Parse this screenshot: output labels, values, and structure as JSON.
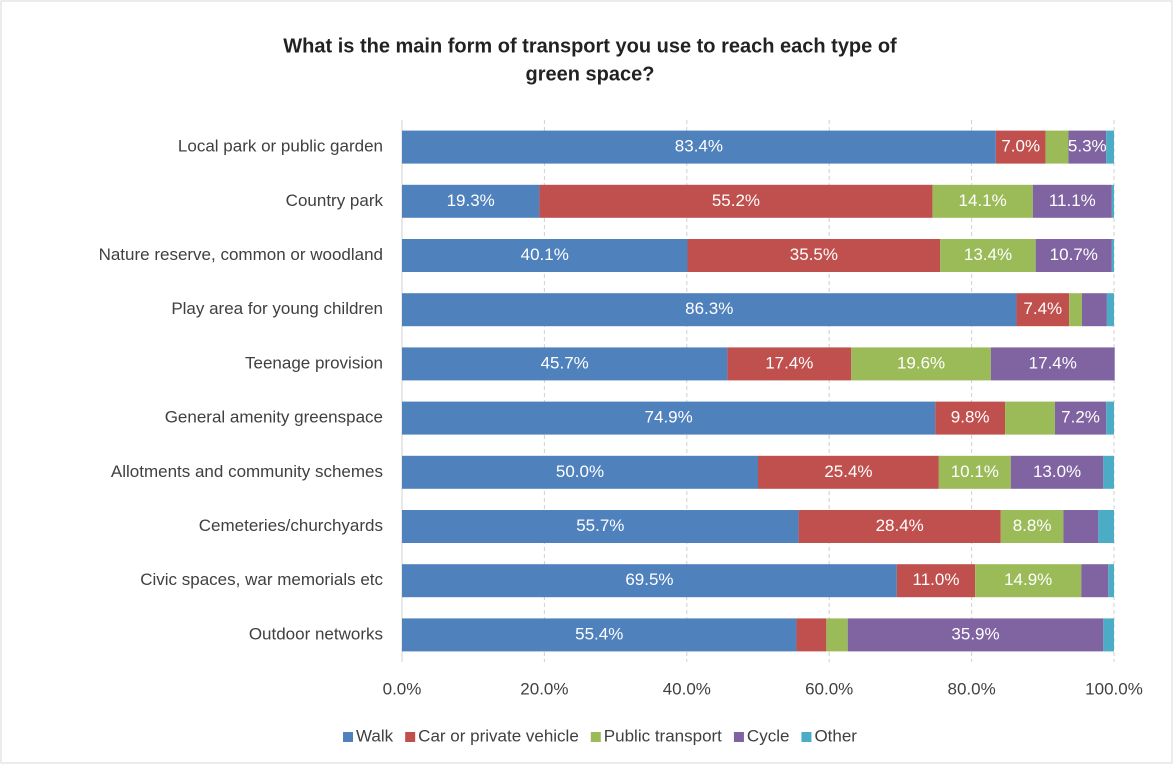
{
  "chart_data": {
    "type": "stacked_barh",
    "title": "What is the main form of transport you use to reach each type of green space?",
    "categories": [
      "Local park or public garden",
      "Country park",
      "Nature reserve, common or woodland",
      "Play area for young children",
      "Teenage provision",
      "General amenity greenspace",
      "Allotments and community schemes",
      "Cemeteries/churchyards",
      "Civic spaces, war memorials etc",
      "Outdoor networks"
    ],
    "series": [
      {
        "name": "Walk",
        "color": "#4f81bd",
        "values": [
          83.4,
          19.3,
          40.1,
          86.3,
          45.7,
          74.9,
          50.0,
          55.7,
          69.5,
          55.4
        ],
        "value_labels": [
          "83.4%",
          "19.3%",
          "40.1%",
          "86.3%",
          "45.7%",
          "74.9%",
          "50.0%",
          "55.7%",
          "69.5%",
          "55.4%"
        ]
      },
      {
        "name": "Car or private vehicle",
        "color": "#c0504d",
        "values": [
          7.0,
          55.2,
          35.5,
          7.4,
          17.4,
          9.8,
          25.4,
          28.4,
          11.0,
          4.2
        ],
        "value_labels": [
          "7.0%",
          "55.2%",
          "35.5%",
          "7.4%",
          "17.4%",
          "9.8%",
          "25.4%",
          "28.4%",
          "11.0%",
          null
        ]
      },
      {
        "name": "Public transport",
        "color": "#9bbb59",
        "values": [
          3.2,
          14.1,
          13.4,
          1.8,
          19.6,
          7.0,
          10.1,
          8.8,
          14.9,
          3.0
        ],
        "value_labels": [
          null,
          "14.1%",
          "13.4%",
          null,
          "19.6%",
          null,
          "10.1%",
          "8.8%",
          "14.9%",
          null
        ]
      },
      {
        "name": "Cycle",
        "color": "#8064a2",
        "values": [
          5.3,
          11.1,
          10.7,
          3.5,
          17.4,
          7.2,
          13.0,
          4.9,
          3.8,
          35.9
        ],
        "value_labels": [
          "5.3%",
          "11.1%",
          "10.7%",
          null,
          "17.4%",
          "7.2%",
          "13.0%",
          null,
          null,
          "35.9%"
        ]
      },
      {
        "name": "Other",
        "color": "#4bacc6",
        "values": [
          1.1,
          0.3,
          0.3,
          1.0,
          0.0,
          1.1,
          1.5,
          2.2,
          0.8,
          1.5
        ],
        "value_labels": [
          null,
          null,
          null,
          null,
          null,
          null,
          null,
          null,
          null,
          null
        ]
      }
    ],
    "xlim": [
      0,
      100
    ],
    "xticks": [
      {
        "value": 0,
        "label": "0.0%"
      },
      {
        "value": 20,
        "label": "20.0%"
      },
      {
        "value": 40,
        "label": "40.0%"
      },
      {
        "value": 60,
        "label": "60.0%"
      },
      {
        "value": 80,
        "label": "80.0%"
      },
      {
        "value": 100,
        "label": "100.0%"
      }
    ],
    "grid": true,
    "legend": "bottom"
  }
}
